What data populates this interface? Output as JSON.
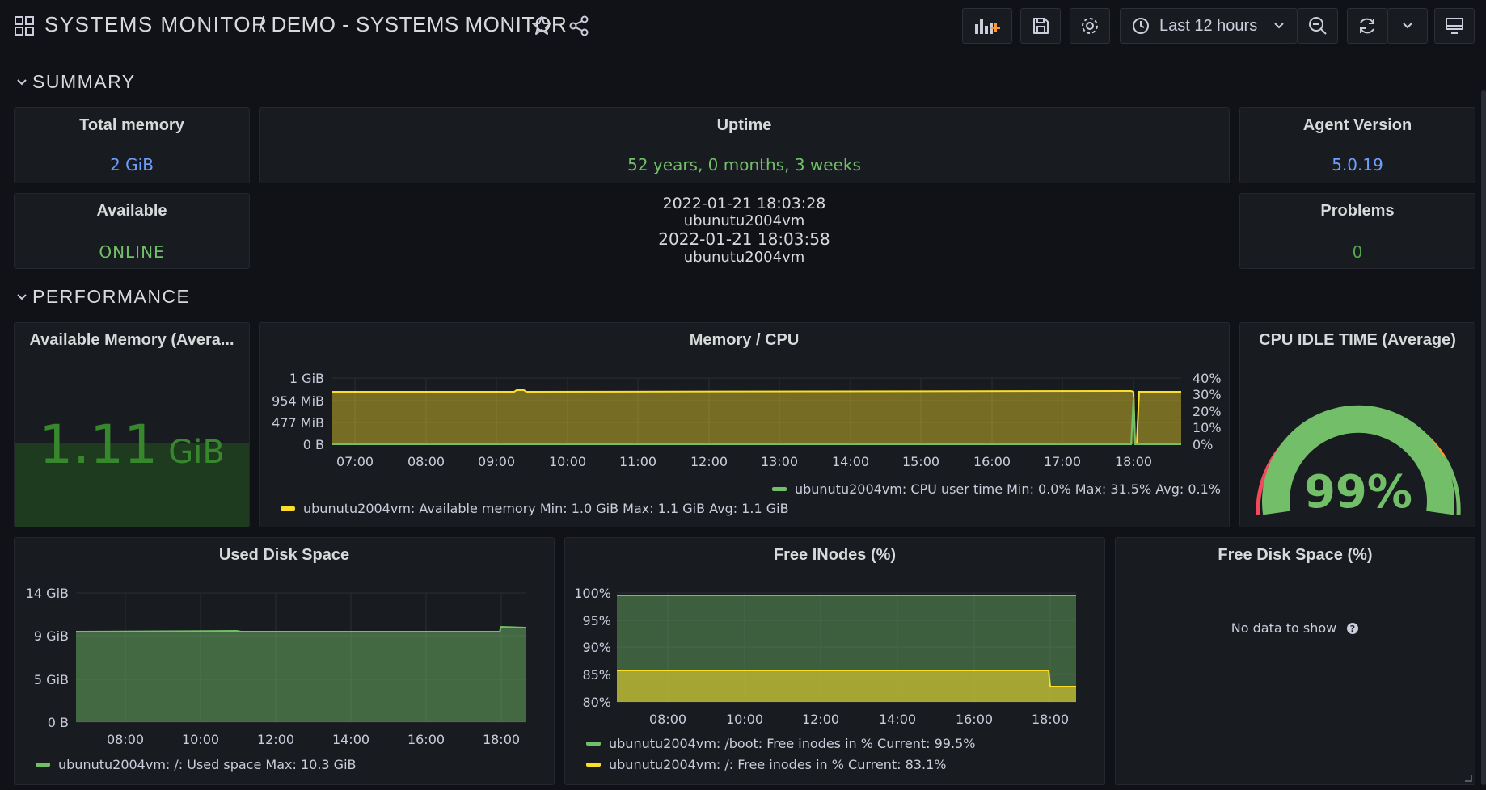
{
  "header": {
    "folder": "SYSTEMS MONITOR",
    "title": "/ DEMO - SYSTEMS MONITOR",
    "time_range": "Last 12 hours"
  },
  "colors": {
    "green": "#73bf69",
    "blue": "#6e9fff",
    "yellow": "#fade2a",
    "red": "#f2495c",
    "orange": "#ff9830",
    "background": "#111217",
    "panel": "#181b1f"
  },
  "rows": {
    "summary": "SUMMARY",
    "performance": "PERFORMANCE"
  },
  "summary": {
    "total_memory": {
      "title": "Total memory",
      "value": "2 GiB"
    },
    "uptime": {
      "title": "Uptime",
      "value": "52 years, 0 months, 3 weeks"
    },
    "agent_version": {
      "title": "Agent Version",
      "value": "5.0.19"
    },
    "available": {
      "title": "Available",
      "value": "ONLINE"
    },
    "problems": {
      "title": "Problems",
      "value": "0"
    },
    "events": [
      {
        "time": "2022-01-21 18:03:28",
        "host": "ubunutu2004vm"
      },
      {
        "time": "2022-01-21 18:03:58",
        "host": "ubunutu2004vm"
      }
    ]
  },
  "performance": {
    "available_memory": {
      "title": "Available Memory (Avera...",
      "value": "1.11",
      "unit": "GiB"
    },
    "memory_cpu": {
      "title": "Memory / CPU",
      "legend_cpu": "ubunutu2004vm: CPU user time  Min: 0.0%  Max: 31.5%  Avg: 0.1%",
      "legend_mem": "ubunutu2004vm: Available memory  Min: 1.0 GiB  Max: 1.1 GiB  Avg: 1.1 GiB"
    },
    "cpu_idle": {
      "title": "CPU IDLE TIME (Average)",
      "value": "99%"
    }
  },
  "disk": {
    "used_space": {
      "title": "Used Disk Space",
      "legend": "ubunutu2004vm: /: Used space  Max: 10.3 GiB"
    },
    "free_inodes": {
      "title": "Free INodes (%)",
      "legend_boot": "ubunutu2004vm: /boot: Free inodes in %  Current: 99.5%",
      "legend_root": "ubunutu2004vm: /: Free inodes in %  Current: 83.1%"
    },
    "free_disk": {
      "title": "Free Disk Space (%)",
      "no_data": "No data to show"
    }
  },
  "chart_data": [
    {
      "type": "line",
      "title": "Memory / CPU",
      "x": [
        "07:00",
        "08:00",
        "09:00",
        "10:00",
        "11:00",
        "12:00",
        "13:00",
        "14:00",
        "15:00",
        "16:00",
        "17:00",
        "18:00"
      ],
      "y_left_ticks": [
        "1 GiB",
        "954 MiB",
        "477 MiB",
        "0 B"
      ],
      "y_right_ticks": [
        "40%",
        "30%",
        "20%",
        "10%",
        "0%"
      ],
      "series": [
        {
          "name": "ubunutu2004vm: Available memory",
          "values": [
            1.1,
            1.1,
            1.1,
            1.1,
            1.1,
            1.1,
            1.1,
            1.1,
            1.1,
            1.1,
            1.1,
            1.1
          ]
        },
        {
          "name": "ubunutu2004vm: CPU user time",
          "values": [
            0,
            0,
            0,
            0,
            0,
            0,
            0,
            0,
            0,
            0,
            0,
            31.5
          ]
        }
      ]
    },
    {
      "type": "area",
      "title": "Used Disk Space",
      "x": [
        "08:00",
        "10:00",
        "12:00",
        "14:00",
        "16:00",
        "18:00"
      ],
      "y_ticks": [
        "14 GiB",
        "9 GiB",
        "5 GiB",
        "0 B"
      ],
      "series": [
        {
          "name": "ubunutu2004vm: /: Used space",
          "values": [
            9.6,
            9.7,
            9.6,
            9.6,
            9.7,
            10.3
          ]
        }
      ]
    },
    {
      "type": "area",
      "title": "Free INodes (%)",
      "x": [
        "08:00",
        "10:00",
        "12:00",
        "14:00",
        "16:00",
        "18:00"
      ],
      "y_ticks": [
        "100%",
        "95%",
        "90%",
        "85%",
        "80%"
      ],
      "series": [
        {
          "name": "ubunutu2004vm: /boot: Free inodes in %",
          "values": [
            99.5,
            99.5,
            99.5,
            99.5,
            99.5,
            99.5
          ]
        },
        {
          "name": "ubunutu2004vm: /: Free inodes in %",
          "values": [
            86,
            86,
            86,
            86,
            86,
            83.1
          ]
        }
      ]
    }
  ]
}
